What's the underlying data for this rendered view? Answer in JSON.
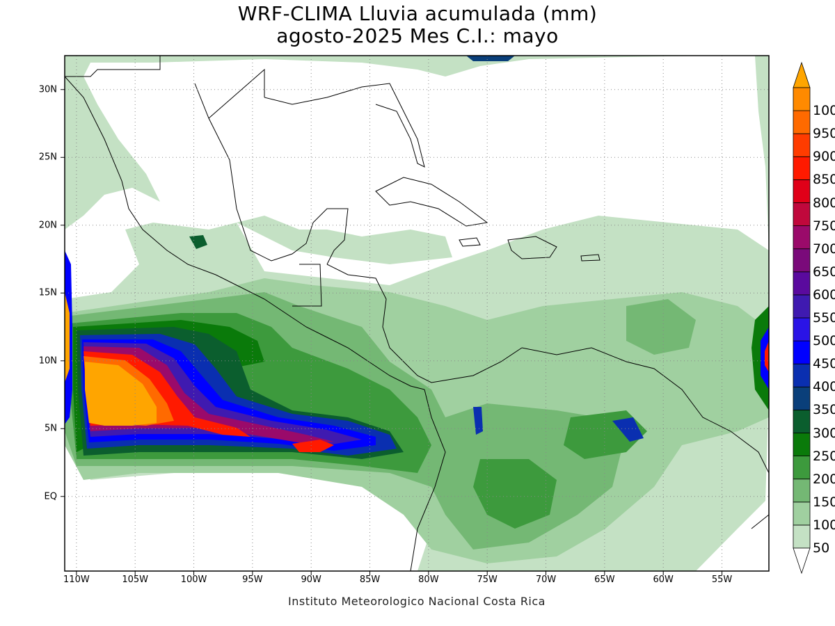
{
  "title_line1": "WRF-CLIMA Lluvia acumulada (mm)",
  "title_line2": "agosto-2025 Mes C.I.: mayo",
  "credit": "Instituto Meteorologico Nacional Costa Rica",
  "map": {
    "lon_range": [
      -111,
      -51
    ],
    "lat_range": [
      -5.5,
      32.5
    ],
    "grid": "dotted",
    "lon_ticks": [
      {
        "value": -110,
        "label": "110W"
      },
      {
        "value": -105,
        "label": "105W"
      },
      {
        "value": -100,
        "label": "100W"
      },
      {
        "value": -95,
        "label": "95W"
      },
      {
        "value": -90,
        "label": "90W"
      },
      {
        "value": -85,
        "label": "85W"
      },
      {
        "value": -80,
        "label": "80W"
      },
      {
        "value": -75,
        "label": "75W"
      },
      {
        "value": -70,
        "label": "70W"
      },
      {
        "value": -65,
        "label": "65W"
      },
      {
        "value": -60,
        "label": "60W"
      },
      {
        "value": -55,
        "label": "55W"
      }
    ],
    "lat_ticks": [
      {
        "value": 30,
        "label": "30N"
      },
      {
        "value": 25,
        "label": "25N"
      },
      {
        "value": 20,
        "label": "20N"
      },
      {
        "value": 15,
        "label": "15N"
      },
      {
        "value": 10,
        "label": "10N"
      },
      {
        "value": 5,
        "label": "5N"
      },
      {
        "value": 0,
        "label": "EQ"
      }
    ]
  },
  "colorbar": {
    "labels": [
      "50",
      "100",
      "150",
      "200",
      "250",
      "300",
      "350",
      "400",
      "450",
      "500",
      "550",
      "600",
      "650",
      "700",
      "750",
      "800",
      "850",
      "900",
      "950",
      "1000"
    ],
    "colors": [
      "#c4e1c4",
      "#a0d0a0",
      "#74b874",
      "#3d9a3d",
      "#0a7a0a",
      "#0b5e2e",
      "#0a3f7a",
      "#0a2fb0",
      "#0000ff",
      "#2a14e6",
      "#3f1ab0",
      "#5a0a9e",
      "#7a0a7a",
      "#9a0a6a",
      "#c0083c",
      "#e00018",
      "#ff1a00",
      "#ff3c00",
      "#ff6a00",
      "#ff8a00"
    ],
    "over_color": "#ffa500",
    "under_color": "#ffffff"
  }
}
